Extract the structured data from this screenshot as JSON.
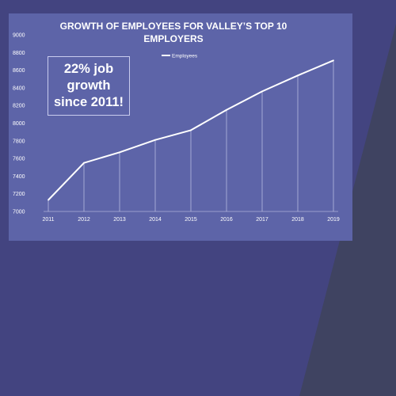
{
  "colors": {
    "page_background": "#434480",
    "chart_background": "#5d64a8",
    "corner_shape": "#3f4361",
    "line": "#ffffff",
    "text": "#ffffff"
  },
  "callout": {
    "text": "22% job growth since 2011!"
  },
  "chart_data": {
    "type": "line",
    "title_lines": [
      "GROWTH OF EMPLOYEES FOR VALLEY’S TOP 10",
      "EMPLOYERS"
    ],
    "xlabel": "",
    "ylabel": "",
    "categories": [
      "2011",
      "2012",
      "2013",
      "2014",
      "2015",
      "2016",
      "2017",
      "2018",
      "2019"
    ],
    "series": [
      {
        "name": "Employees",
        "values": [
          7130,
          7550,
          7670,
          7810,
          7920,
          8150,
          8360,
          8540,
          8710
        ]
      }
    ],
    "ylim": [
      7000,
      9000
    ],
    "yticks": [
      "7000",
      "7200",
      "7400",
      "7600",
      "7800",
      "8000",
      "8200",
      "8400",
      "8600",
      "8800",
      "9000"
    ],
    "drop_lines": true,
    "grid": false,
    "legend_position": "top-right"
  }
}
